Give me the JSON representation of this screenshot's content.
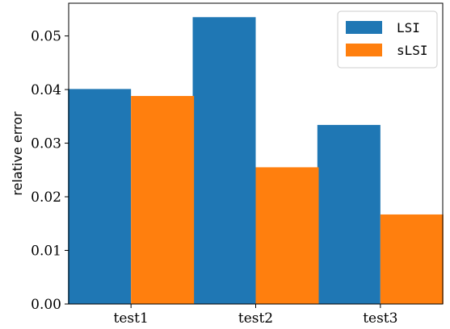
{
  "chart_data": {
    "type": "bar",
    "title": "",
    "xlabel": "",
    "ylabel": "relative error",
    "categories": [
      "test1",
      "test2",
      "test3"
    ],
    "series": [
      {
        "name": "LSI",
        "color": "#1f77b4",
        "values": [
          0.0401,
          0.0535,
          0.0334
        ]
      },
      {
        "name": "sLSI",
        "color": "#ff7f0e",
        "values": [
          0.0388,
          0.0255,
          0.0167
        ]
      }
    ],
    "ylim": [
      0,
      0.0561
    ],
    "yticks": [
      0.0,
      0.01,
      0.02,
      0.03,
      0.04,
      0.05
    ],
    "ytick_labels": [
      "0.00",
      "0.01",
      "0.02",
      "0.03",
      "0.04",
      "0.05"
    ],
    "grid": false,
    "legend": "top-right"
  }
}
